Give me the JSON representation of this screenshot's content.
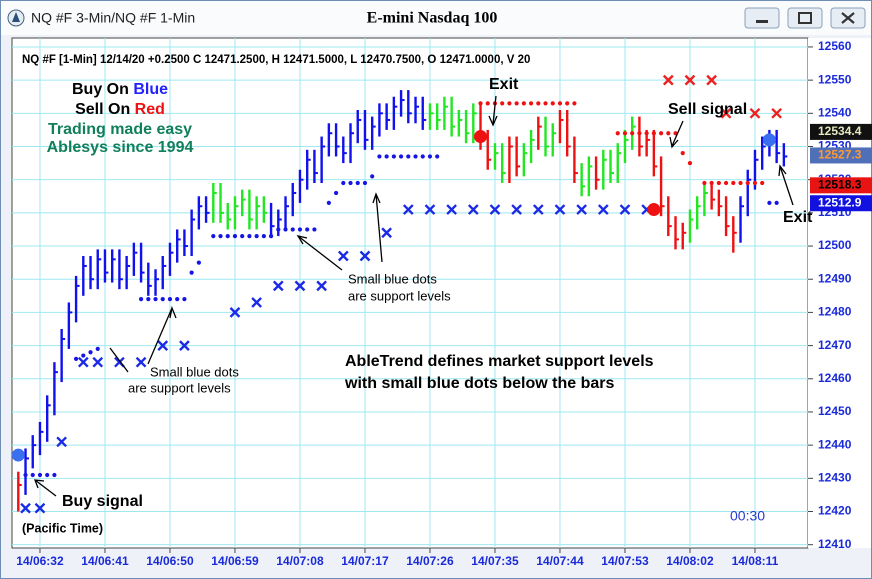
{
  "chart_data": {
    "type": "ohlc",
    "title": "E-mini Nasdaq 100",
    "window_title": "NQ #F 3-Min/NQ #F 1-Min",
    "info": "NQ #F [1-Min] 12/14/20  +0.2500 C 12471.2500, H 12471.5000, L 12470.7500, O 12471.0000, V 20",
    "legend": {
      "buy": "Buy On ",
      "buy_color_word": "Blue",
      "sell": "Sell On ",
      "sell_color_word": "Red",
      "line3": "Trading made easy",
      "line4": "Ablesys since 1994"
    },
    "annotations": {
      "exit_1": "Exit",
      "sell_signal": "Sell signal",
      "exit_2": "Exit",
      "buy_signal": "Buy signal",
      "timezone": "(Pacific Time)",
      "dots_note_1a": "Small blue dots",
      "dots_note_1b": "are support levels",
      "dots_note_2a": "Small blue dots",
      "dots_note_2b": "are support levels",
      "main_1": "AbleTrend defines market support levels",
      "main_2": "with small blue dots below the bars",
      "timer": "00:30"
    },
    "categories": [
      null,
      null,
      null,
      "14/06:32",
      null,
      null,
      null,
      null,
      null,
      null,
      null,
      null,
      "14/06:41",
      null,
      null,
      null,
      null,
      null,
      null,
      null,
      null,
      "14/06:50",
      null,
      null,
      null,
      null,
      null,
      null,
      null,
      null,
      "14/06:59",
      null,
      null,
      null,
      null,
      null,
      null,
      null,
      null,
      "14/07:08",
      null,
      null,
      null,
      null,
      null,
      null,
      null,
      null,
      "14/07:17",
      null,
      null,
      null,
      null,
      null,
      null,
      null,
      null,
      "14/07:26",
      null,
      null,
      null,
      null,
      null,
      null,
      null,
      null,
      "14/07:35",
      null,
      null,
      null,
      null,
      null,
      null,
      null,
      null,
      "14/07:44",
      null,
      null,
      null,
      null,
      null,
      null,
      null,
      null,
      "14/07:53",
      null,
      null,
      null,
      null,
      null,
      null,
      null,
      null,
      "14/08:02",
      null,
      null,
      null,
      null,
      null,
      null,
      null,
      null,
      "14/08:11",
      null,
      null,
      null,
      null
    ],
    "high": [
      12432,
      12439,
      12443,
      12447,
      12455,
      12465,
      12475,
      12483,
      12491,
      12497,
      12497,
      12499,
      12499,
      12499,
      12499,
      12497,
      12501,
      12501,
      12495,
      12493,
      12497,
      12501,
      12505,
      12505,
      12511,
      12515,
      12515,
      12519,
      12519,
      12513,
      12515,
      12517,
      12517,
      12515,
      12515,
      12513,
      12511,
      12515,
      12519,
      12523,
      12529,
      12529,
      12533,
      12537,
      12537,
      12533,
      12537,
      12541,
      12541,
      12539,
      12543,
      12543,
      12545,
      12547,
      12547,
      12545,
      12545,
      12543,
      12543,
      12545,
      12545,
      12541,
      12541,
      12543,
      12543,
      12535,
      12531,
      12531,
      12533,
      12533,
      12531,
      12535,
      12539,
      12539,
      12537,
      12541,
      12541,
      12533,
      12525,
      12527,
      12527,
      12529,
      12529,
      12531,
      12535,
      12539,
      12539,
      12535,
      12535,
      12527,
      12515,
      12509,
      12507,
      12511,
      12515,
      12519,
      12519,
      12517,
      12515,
      12509,
      12515,
      12523,
      12529,
      12533,
      12535,
      12535,
      12531
    ],
    "low": [
      12420,
      12425,
      12433,
      12437,
      12441,
      12449,
      12459,
      12469,
      12477,
      12485,
      12487,
      12487,
      12489,
      12489,
      12487,
      12487,
      12491,
      12489,
      12485,
      12485,
      12487,
      12491,
      12495,
      12497,
      12497,
      12505,
      12507,
      12507,
      12507,
      12505,
      12505,
      12509,
      12505,
      12505,
      12507,
      12503,
      12503,
      12505,
      12509,
      12513,
      12517,
      12519,
      12519,
      12527,
      12527,
      12525,
      12525,
      12531,
      12529,
      12529,
      12533,
      12535,
      12535,
      12539,
      12537,
      12537,
      12535,
      12535,
      12535,
      12535,
      12533,
      12533,
      12531,
      12531,
      12529,
      12523,
      12523,
      12519,
      12519,
      12521,
      12521,
      12525,
      12529,
      12527,
      12527,
      12531,
      12527,
      12519,
      12515,
      12515,
      12517,
      12517,
      12519,
      12519,
      12525,
      12529,
      12527,
      12527,
      12521,
      12509,
      12503,
      12499,
      12499,
      12501,
      12505,
      12509,
      12511,
      12509,
      12503,
      12498,
      12501,
      12509,
      12517,
      12523,
      12527,
      12525,
      12524
    ],
    "close": [
      12428,
      12436,
      12440,
      12444,
      12452,
      12462,
      12472,
      12480,
      12488,
      12494,
      12490,
      12496,
      12492,
      12496,
      12490,
      12494,
      12498,
      12492,
      12488,
      12490,
      12494,
      12498,
      12502,
      12500,
      12508,
      12512,
      12510,
      12516,
      12510,
      12508,
      12512,
      12514,
      12508,
      12512,
      12510,
      12506,
      12508,
      12512,
      12516,
      12520,
      12526,
      12522,
      12530,
      12534,
      12530,
      12528,
      12534,
      12538,
      12532,
      12536,
      12540,
      12538,
      12542,
      12544,
      12540,
      12542,
      12538,
      12540,
      12538,
      12542,
      12536,
      12538,
      12534,
      12540,
      12532,
      12526,
      12528,
      12522,
      12530,
      12524,
      12528,
      12532,
      12536,
      12530,
      12534,
      12538,
      12530,
      12522,
      12518,
      12524,
      12520,
      12526,
      12522,
      12528,
      12532,
      12536,
      12530,
      12532,
      12524,
      12512,
      12506,
      12502,
      12504,
      12508,
      12512,
      12516,
      12514,
      12512,
      12506,
      12504,
      12512,
      12520,
      12526,
      12530,
      12532,
      12528,
      12527
    ],
    "trend": [
      2,
      0,
      0,
      0,
      0,
      0,
      0,
      0,
      0,
      0,
      0,
      0,
      0,
      0,
      0,
      0,
      0,
      0,
      0,
      0,
      0,
      0,
      0,
      0,
      0,
      0,
      0,
      1,
      1,
      1,
      1,
      1,
      1,
      1,
      1,
      0,
      0,
      0,
      0,
      0,
      0,
      0,
      0,
      0,
      0,
      0,
      0,
      0,
      0,
      0,
      0,
      0,
      0,
      0,
      0,
      0,
      0,
      1,
      1,
      1,
      1,
      1,
      1,
      1,
      2,
      2,
      1,
      1,
      2,
      2,
      1,
      1,
      2,
      1,
      1,
      2,
      2,
      2,
      1,
      1,
      2,
      1,
      1,
      1,
      1,
      1,
      2,
      2,
      2,
      2,
      2,
      2,
      2,
      1,
      1,
      1,
      2,
      2,
      2,
      2,
      0,
      0,
      0,
      0,
      0,
      0,
      0
    ],
    "palette": [
      "#1111ee",
      "#22e622",
      "#ee1111"
    ],
    "support_dots": {
      "color": "#1515e6",
      "values": [
        null,
        12431,
        12431,
        12431,
        12431,
        12431,
        null,
        null,
        12466,
        12467,
        12468,
        12469,
        null,
        null,
        null,
        null,
        null,
        12484,
        12484,
        12484,
        12484,
        12484,
        12484,
        12484,
        12492,
        12495,
        null,
        12503,
        12503,
        12503,
        12503,
        12503,
        12503,
        12503,
        12503,
        12503,
        12505,
        12505,
        12505,
        12505,
        12505,
        12505,
        null,
        12513,
        12516,
        12519,
        12519,
        12519,
        12519,
        12521,
        12527,
        12527,
        12527,
        12527,
        12527,
        12527,
        12527,
        12527,
        12527,
        null,
        null,
        null,
        null,
        null,
        null,
        null,
        null,
        null,
        null,
        null,
        null,
        null,
        null,
        null,
        null,
        null,
        null,
        null,
        null,
        null,
        null,
        null,
        null,
        null,
        null,
        null,
        null,
        null,
        null,
        null,
        null,
        null,
        null,
        null,
        null,
        null,
        null,
        null,
        null,
        null,
        null,
        null,
        null,
        null,
        12513,
        12513,
        null
      ]
    },
    "resistance_dots": {
      "color": "#ee1111",
      "values": [
        null,
        null,
        null,
        null,
        null,
        null,
        null,
        null,
        null,
        null,
        null,
        null,
        null,
        null,
        null,
        null,
        null,
        null,
        null,
        null,
        null,
        null,
        null,
        null,
        null,
        null,
        null,
        null,
        null,
        null,
        null,
        null,
        null,
        null,
        null,
        null,
        null,
        null,
        null,
        null,
        null,
        null,
        null,
        null,
        null,
        null,
        null,
        null,
        null,
        null,
        null,
        null,
        null,
        null,
        null,
        null,
        null,
        null,
        null,
        null,
        null,
        null,
        null,
        null,
        12543,
        12543,
        12543,
        12543,
        12543,
        12543,
        12543,
        12543,
        12543,
        12543,
        12543,
        12543,
        12543,
        12543,
        null,
        null,
        null,
        null,
        null,
        12534,
        12534,
        12534,
        12534,
        12534,
        12534,
        12534,
        12534,
        12534,
        12528,
        12525,
        null,
        12519,
        12519,
        12519,
        12519,
        12519,
        12519,
        12519,
        12519,
        12519,
        null,
        null,
        null
      ]
    },
    "blue_stops": {
      "color": "#1a2ae6",
      "values": [
        null,
        12421,
        null,
        12421,
        null,
        null,
        12441,
        null,
        null,
        12465,
        null,
        12465,
        null,
        null,
        12465,
        null,
        null,
        12465,
        null,
        null,
        12470,
        null,
        null,
        12470,
        null,
        null,
        null,
        null,
        null,
        null,
        12480,
        null,
        null,
        12483,
        null,
        null,
        12488,
        null,
        null,
        12488,
        null,
        null,
        12488,
        null,
        null,
        12497,
        null,
        null,
        12497,
        null,
        null,
        12504,
        null,
        null,
        12511,
        null,
        null,
        12511,
        null,
        null,
        12511,
        null,
        null,
        12511,
        null,
        null,
        12511,
        null,
        null,
        12511,
        null,
        null,
        12511,
        null,
        null,
        12511,
        null,
        null,
        12511,
        null,
        null,
        12511,
        null,
        null,
        12511,
        null,
        null,
        12511,
        null,
        null,
        null,
        null,
        null,
        null,
        null,
        null,
        null,
        null,
        null,
        null,
        null,
        null,
        null,
        null,
        null,
        null,
        null
      ]
    },
    "red_stops": {
      "color": "#ee2020",
      "values": [
        null,
        null,
        null,
        null,
        null,
        null,
        null,
        null,
        null,
        null,
        null,
        null,
        null,
        null,
        null,
        null,
        null,
        null,
        null,
        null,
        null,
        null,
        null,
        null,
        null,
        null,
        null,
        null,
        null,
        null,
        null,
        null,
        null,
        null,
        null,
        null,
        null,
        null,
        null,
        null,
        null,
        null,
        null,
        null,
        null,
        null,
        null,
        null,
        null,
        null,
        null,
        null,
        null,
        null,
        null,
        null,
        null,
        null,
        null,
        null,
        null,
        null,
        null,
        null,
        null,
        null,
        null,
        null,
        null,
        null,
        null,
        null,
        null,
        null,
        null,
        null,
        null,
        null,
        null,
        null,
        null,
        null,
        null,
        null,
        null,
        null,
        null,
        null,
        null,
        null,
        12550,
        null,
        null,
        12550,
        null,
        null,
        12550,
        null,
        12540,
        null,
        null,
        null,
        12540,
        null,
        null,
        12540,
        null
      ]
    },
    "buy_dots": {
      "color": "#3a6ff0",
      "values": [
        12437,
        null,
        null,
        null,
        null,
        null,
        null,
        null,
        null,
        null,
        null,
        null,
        null,
        null,
        null,
        null,
        null,
        null,
        null,
        null,
        null,
        null,
        null,
        null,
        null,
        null,
        null,
        null,
        null,
        null,
        null,
        null,
        null,
        null,
        null,
        null,
        null,
        null,
        null,
        null,
        null,
        null,
        null,
        null,
        null,
        null,
        null,
        null,
        null,
        null,
        null,
        null,
        null,
        null,
        null,
        null,
        null,
        null,
        null,
        null,
        null,
        null,
        null,
        null,
        null,
        null,
        null,
        null,
        null,
        null,
        null,
        null,
        null,
        null,
        null,
        null,
        null,
        null,
        null,
        null,
        null,
        null,
        null,
        null,
        null,
        null,
        null,
        null,
        null,
        null,
        null,
        null,
        null,
        null,
        null,
        null,
        null,
        null,
        null,
        null,
        null,
        null,
        null,
        null,
        12532,
        null,
        null
      ]
    },
    "sell_dots": {
      "color": "#ee1111",
      "values": [
        null,
        null,
        null,
        null,
        null,
        null,
        null,
        null,
        null,
        null,
        null,
        null,
        null,
        null,
        null,
        null,
        null,
        null,
        null,
        null,
        null,
        null,
        null,
        null,
        null,
        null,
        null,
        null,
        null,
        null,
        null,
        null,
        null,
        null,
        null,
        null,
        null,
        null,
        null,
        null,
        null,
        null,
        null,
        null,
        null,
        null,
        null,
        null,
        null,
        null,
        null,
        null,
        null,
        null,
        null,
        null,
        null,
        null,
        null,
        null,
        null,
        null,
        null,
        null,
        12533,
        null,
        null,
        null,
        null,
        null,
        null,
        null,
        null,
        null,
        null,
        null,
        null,
        null,
        null,
        null,
        null,
        null,
        null,
        null,
        null,
        null,
        null,
        null,
        12511,
        null,
        null,
        null,
        null,
        null,
        null,
        null,
        null,
        null,
        null,
        null,
        null,
        null,
        null,
        null,
        null,
        null,
        null
      ]
    },
    "price_tags": {
      "values": [
        12534.4,
        12527.3,
        12518.3,
        12512.9
      ],
      "colors": [
        "#111111",
        "#4f6fb8",
        "#e81414",
        "#1212e0"
      ],
      "text_colors": [
        "#e8e8c0",
        "#ff9a30",
        "#000000",
        "#ffffff"
      ]
    },
    "ylim": [
      12409,
      12563
    ],
    "yticks": [
      12410,
      12420,
      12430,
      12440,
      12450,
      12460,
      12470,
      12480,
      12490,
      12500,
      12510,
      12520,
      12530,
      12540,
      12550,
      12560
    ],
    "grid": true,
    "grid_color": "#9ee8f2"
  }
}
